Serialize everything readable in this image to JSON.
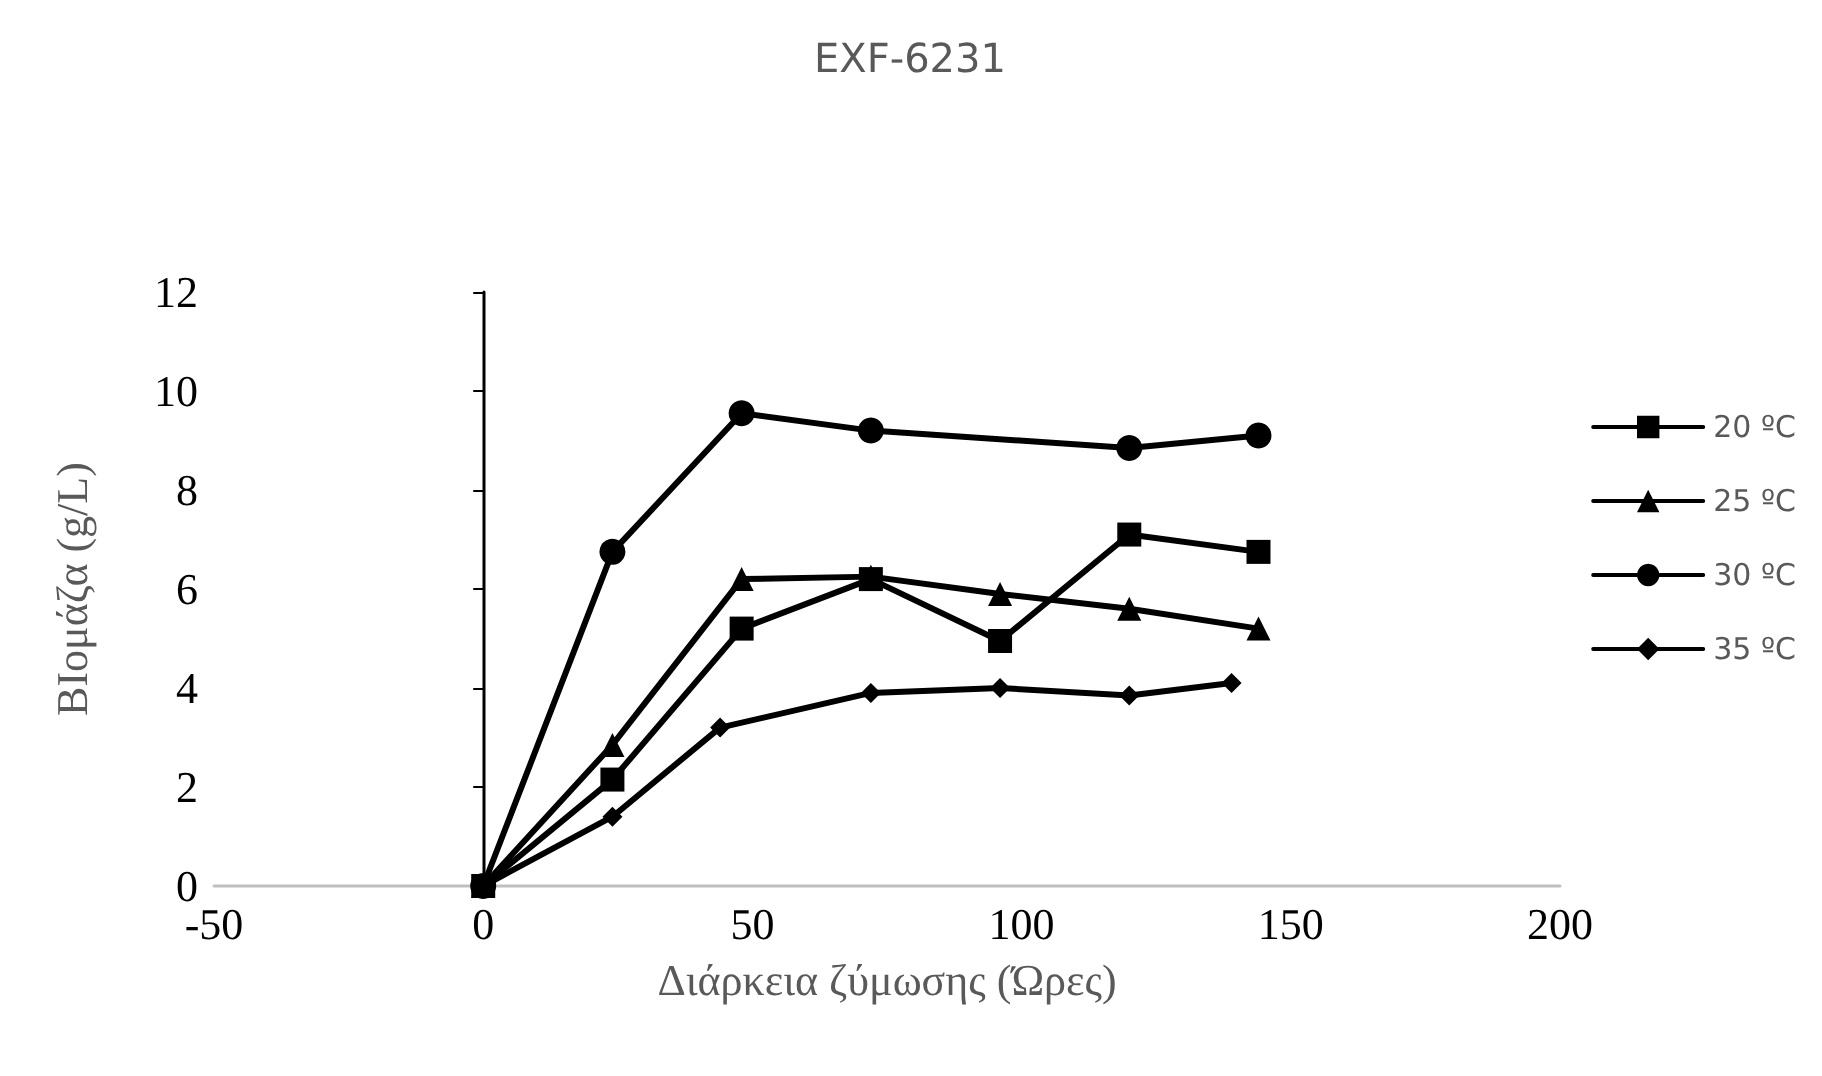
{
  "chart_data": {
    "type": "line",
    "title": "EXF-6231",
    "xlabel": "Διάρκεια ζύμωσης (Ώρες)",
    "ylabel": "ΒΙομάζα (g/L)",
    "xlim": [
      -50,
      200
    ],
    "xticks": [
      -50,
      0,
      50,
      100,
      150,
      200
    ],
    "ylim": [
      0,
      12
    ],
    "yticks": [
      0,
      2,
      4,
      6,
      8,
      10,
      12
    ],
    "legend": "right",
    "line_style": "solid",
    "series": [
      {
        "name": "20 ºC",
        "color": "#000000",
        "marker": "square",
        "x": [
          0,
          24,
          48,
          72,
          96,
          120,
          144
        ],
        "values": [
          0,
          2.15,
          5.2,
          6.2,
          4.95,
          7.1,
          6.75
        ]
      },
      {
        "name": "25 ºC",
        "color": "#000000",
        "marker": "triangle",
        "x": [
          0,
          24,
          48,
          72,
          96,
          120,
          144
        ],
        "values": [
          0,
          2.85,
          6.2,
          6.25,
          5.9,
          5.6,
          5.2
        ]
      },
      {
        "name": "30 ºC",
        "color": "#000000",
        "marker": "circle",
        "x": [
          0,
          24,
          48,
          72,
          120,
          144
        ],
        "values": [
          0,
          6.75,
          9.55,
          9.2,
          8.85,
          9.1
        ]
      },
      {
        "name": "35 ºC",
        "color": "#000000",
        "marker": "diamond",
        "x": [
          0,
          24,
          44,
          72,
          96,
          120,
          139
        ],
        "values": [
          0,
          1.4,
          3.2,
          3.9,
          4.0,
          3.85,
          4.1
        ]
      }
    ]
  }
}
